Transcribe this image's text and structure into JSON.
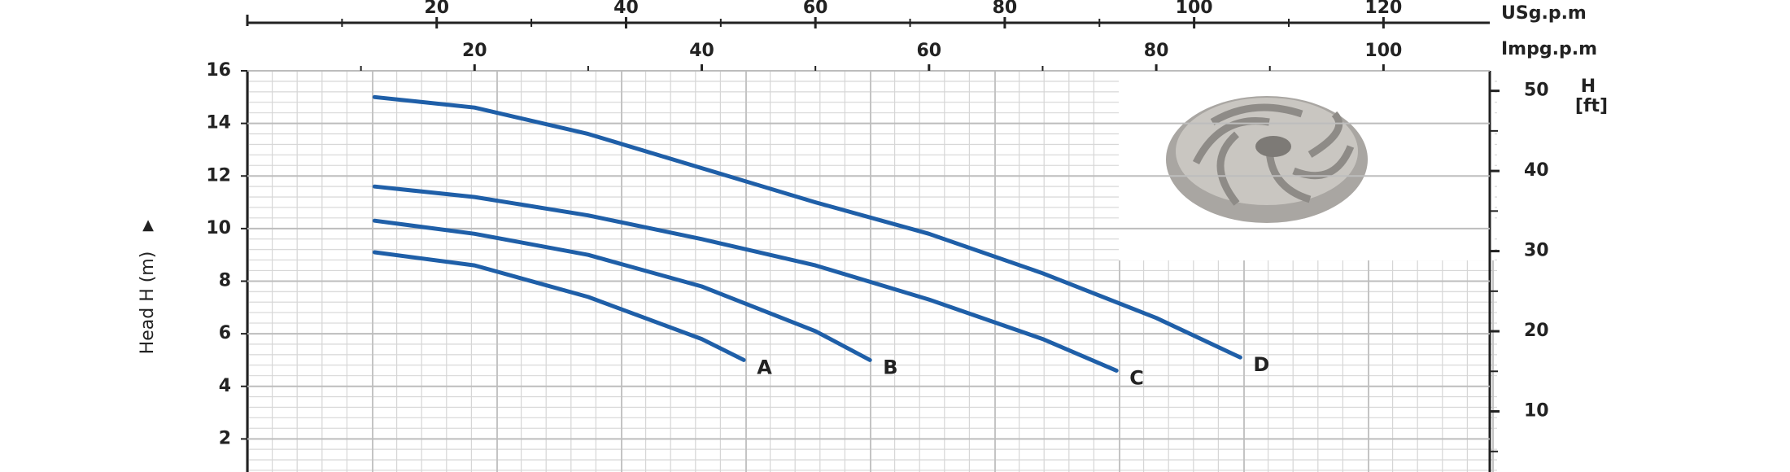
{
  "chart_data": {
    "type": "line",
    "x_label": "Impg.p.m",
    "x2_label": "USg.p.m",
    "y_label": "Head H (m)",
    "y_label_marker": "▲",
    "y2_label": [
      "H",
      "[ft]"
    ],
    "xlim": [
      0,
      110
    ],
    "xticks": [
      20,
      40,
      60,
      80,
      100
    ],
    "x2lim": [
      0,
      132
    ],
    "x2ticks": [
      20,
      40,
      60,
      80,
      100,
      120
    ],
    "ylim": [
      0,
      16
    ],
    "yticks": [
      2,
      4,
      6,
      8,
      10,
      12,
      14,
      16
    ],
    "y2lim": [
      0,
      52.5
    ],
    "y2ticks": [
      10,
      20,
      30,
      40,
      50
    ],
    "grid": true,
    "series": [
      {
        "name": "A",
        "color": "#1f5fa8",
        "x": [
          11.2,
          20,
          30,
          40,
          43.7
        ],
        "values": [
          9.1,
          8.6,
          7.4,
          5.8,
          5.0
        ]
      },
      {
        "name": "B",
        "color": "#1f5fa8",
        "x": [
          11.2,
          20,
          30,
          40,
          50,
          54.8
        ],
        "values": [
          10.3,
          9.8,
          9.0,
          7.8,
          6.1,
          5.0
        ]
      },
      {
        "name": "C",
        "color": "#1f5fa8",
        "x": [
          11.2,
          20,
          30,
          40,
          50,
          60,
          70,
          76.5
        ],
        "values": [
          11.6,
          11.2,
          10.5,
          9.6,
          8.6,
          7.3,
          5.8,
          4.6
        ]
      },
      {
        "name": "D",
        "color": "#1f5fa8",
        "x": [
          11.2,
          20,
          30,
          40,
          50,
          60,
          70,
          80,
          87.4
        ],
        "values": [
          15.0,
          14.6,
          13.6,
          12.3,
          11.0,
          9.8,
          8.3,
          6.6,
          5.1
        ]
      }
    ]
  }
}
